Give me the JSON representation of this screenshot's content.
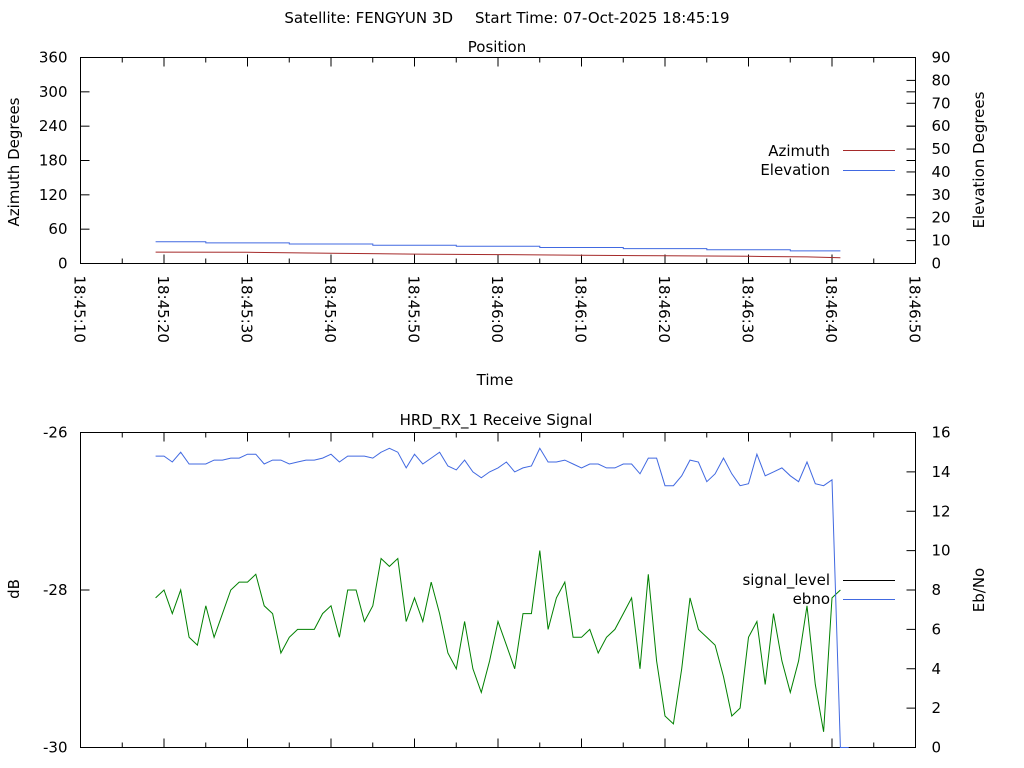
{
  "header": {
    "satellite": "Satellite: FENGYUN 3D",
    "start_time": "Start Time: 07-Oct-2025 18:45:19"
  },
  "chart_data": [
    {
      "type": "line",
      "title": "Position",
      "xlabel": "Time",
      "ylabel": "Azimuth Degrees",
      "y2label": "Elevation Degrees",
      "x_ticks": [
        "18:45:10",
        "18:45:20",
        "18:45:30",
        "18:45:40",
        "18:45:50",
        "18:46:00",
        "18:46:10",
        "18:46:20",
        "18:46:30",
        "18:46:40",
        "18:46:50"
      ],
      "y_ticks": [
        0,
        60,
        120,
        180,
        240,
        300,
        360
      ],
      "y2_ticks": [
        0,
        10,
        20,
        30,
        40,
        50,
        60,
        70,
        80,
        90
      ],
      "ylim": [
        0,
        360
      ],
      "y2lim": [
        0,
        90
      ],
      "xlim_seconds": [
        10,
        110
      ],
      "grid": false,
      "legend_position": "right",
      "series": [
        {
          "name": "Azimuth",
          "axis": "left",
          "color": "#a52a2a",
          "x": [
            19,
            30,
            40,
            50,
            60,
            70,
            80,
            90,
            97,
            101
          ],
          "values": [
            20,
            19.5,
            18,
            16.5,
            15.5,
            14.5,
            13.5,
            12.5,
            11.5,
            10
          ]
        },
        {
          "name": "Elevation",
          "axis": "right",
          "color": "#4169e1",
          "x": [
            19,
            25,
            25,
            35,
            35,
            45,
            45,
            55,
            55,
            65,
            65,
            75,
            75,
            85,
            85,
            95,
            95,
            101
          ],
          "values": [
            9.5,
            9.5,
            9,
            9,
            8.5,
            8.5,
            8,
            8,
            7.5,
            7.5,
            7,
            7,
            6.5,
            6.5,
            6,
            6,
            5.5,
            5.5
          ]
        }
      ]
    },
    {
      "type": "line",
      "title": "HRD_RX_1 Receive Signal",
      "xlabel": "",
      "ylabel": "dB",
      "y2label": "Eb/No",
      "y_ticks": [
        -30,
        -28,
        -26
      ],
      "y2_ticks": [
        0,
        2,
        4,
        6,
        8,
        10,
        12,
        14,
        16
      ],
      "ylim": [
        -30,
        -26
      ],
      "y2lim": [
        0,
        16
      ],
      "xlim_seconds": [
        10,
        110
      ],
      "grid": false,
      "legend_position": "right",
      "series": [
        {
          "name": "signal_level",
          "axis": "left",
          "color": "#008000",
          "x": [
            19,
            20,
            21,
            22,
            23,
            24,
            25,
            26,
            27,
            28,
            29,
            30,
            31,
            32,
            33,
            34,
            35,
            36,
            37,
            38,
            39,
            40,
            41,
            42,
            43,
            44,
            45,
            46,
            47,
            48,
            49,
            50,
            51,
            52,
            53,
            54,
            55,
            56,
            57,
            58,
            59,
            60,
            61,
            62,
            63,
            64,
            65,
            66,
            67,
            68,
            69,
            70,
            71,
            72,
            73,
            74,
            75,
            76,
            77,
            78,
            79,
            80,
            81,
            82,
            83,
            84,
            85,
            86,
            87,
            88,
            89,
            90,
            91,
            92,
            93,
            94,
            95,
            96,
            97,
            98,
            99,
            100,
            101
          ],
          "values": [
            -28.1,
            -28,
            -28.3,
            -28,
            -28.6,
            -28.7,
            -28.2,
            -28.6,
            -28.3,
            -28,
            -27.9,
            -27.9,
            -27.8,
            -28.2,
            -28.3,
            -28.8,
            -28.6,
            -28.5,
            -28.5,
            -28.5,
            -28.3,
            -28.2,
            -28.6,
            -28,
            -28,
            -28.4,
            -28.2,
            -27.6,
            -27.7,
            -27.6,
            -28.4,
            -28.1,
            -28.4,
            -27.9,
            -28.3,
            -28.8,
            -29,
            -28.4,
            -29,
            -29.3,
            -28.9,
            -28.4,
            -28.7,
            -29,
            -28.3,
            -28.3,
            -27.5,
            -28.5,
            -28.1,
            -27.9,
            -28.6,
            -28.6,
            -28.5,
            -28.8,
            -28.6,
            -28.5,
            -28.3,
            -28.1,
            -29,
            -27.8,
            -28.9,
            -29.6,
            -29.7,
            -29,
            -28.1,
            -28.5,
            -28.6,
            -28.7,
            -29.1,
            -29.6,
            -29.5,
            -28.6,
            -28.4,
            -29.2,
            -28.3,
            -28.9,
            -29.3,
            -28.9,
            -28.2,
            -29.2,
            -29.8,
            -28.1,
            -28.0
          ]
        },
        {
          "name": "ebno",
          "axis": "right",
          "color": "#4169e1",
          "x": [
            19,
            20,
            21,
            22,
            23,
            24,
            25,
            26,
            27,
            28,
            29,
            30,
            31,
            32,
            33,
            34,
            35,
            36,
            37,
            38,
            39,
            40,
            41,
            42,
            43,
            44,
            45,
            46,
            47,
            48,
            49,
            50,
            51,
            52,
            53,
            54,
            55,
            56,
            57,
            58,
            59,
            60,
            61,
            62,
            63,
            64,
            65,
            66,
            67,
            68,
            69,
            70,
            71,
            72,
            73,
            74,
            75,
            76,
            77,
            78,
            79,
            80,
            81,
            82,
            83,
            84,
            85,
            86,
            87,
            88,
            89,
            90,
            91,
            92,
            93,
            94,
            95,
            96,
            97,
            98,
            99,
            100,
            101,
            102
          ],
          "values": [
            14.8,
            14.8,
            14.5,
            15,
            14.4,
            14.4,
            14.4,
            14.6,
            14.6,
            14.7,
            14.7,
            14.9,
            14.9,
            14.4,
            14.6,
            14.6,
            14.4,
            14.5,
            14.6,
            14.6,
            14.7,
            14.9,
            14.5,
            14.8,
            14.8,
            14.8,
            14.7,
            15,
            15.2,
            15,
            14.2,
            14.9,
            14.4,
            14.7,
            15,
            14.3,
            14.1,
            14.6,
            14,
            13.7,
            14,
            14.2,
            14.5,
            14,
            14.2,
            14.3,
            15.2,
            14.5,
            14.5,
            14.6,
            14.4,
            14.2,
            14.4,
            14.4,
            14.2,
            14.2,
            14.4,
            14.4,
            13.9,
            14.7,
            14.7,
            13.3,
            13.3,
            13.8,
            14.6,
            14.5,
            13.5,
            13.9,
            14.7,
            13.9,
            13.3,
            13.4,
            14.9,
            13.8,
            14,
            14.2,
            13.8,
            13.5,
            14.5,
            13.4,
            13.3,
            13.6,
            0,
            0
          ]
        }
      ]
    }
  ]
}
